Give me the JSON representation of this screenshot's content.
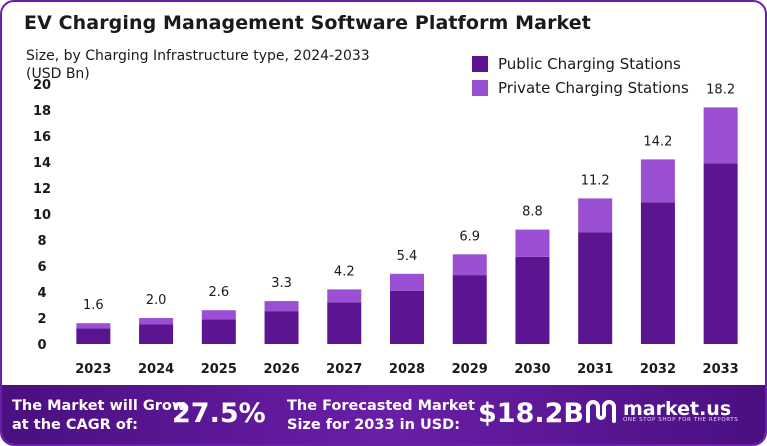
{
  "chart_data": {
    "type": "bar",
    "stacked": true,
    "title": "EV Charging Management Software Platform Market",
    "subtitle": "Size, by Charging Infrastructure type, 2024-2033\n(USD Bn)",
    "categories": [
      "2023",
      "2024",
      "2025",
      "2026",
      "2027",
      "2028",
      "2029",
      "2030",
      "2031",
      "2032",
      "2033"
    ],
    "series": [
      {
        "name": "Public Charging Stations",
        "color": "#5b1590",
        "values": [
          1.2,
          1.5,
          1.9,
          2.5,
          3.2,
          4.1,
          5.3,
          6.7,
          8.6,
          10.9,
          13.9
        ]
      },
      {
        "name": "Private Charging Stations",
        "color": "#9b4fd3",
        "values": [
          0.4,
          0.5,
          0.7,
          0.8,
          1.0,
          1.3,
          1.6,
          2.1,
          2.6,
          3.3,
          4.3
        ]
      }
    ],
    "totals": [
      "1.6",
      "2.0",
      "2.6",
      "3.3",
      "4.2",
      "5.4",
      "6.9",
      "8.8",
      "11.2",
      "14.2",
      "18.2"
    ],
    "ylim": [
      0,
      20
    ],
    "yticks": [
      "0",
      "2",
      "4",
      "6",
      "8",
      "10",
      "12",
      "14",
      "16",
      "18",
      "20"
    ],
    "grid": false,
    "legend_position": "top-right"
  },
  "footer": {
    "cagr_label_1": "The Market will Grow",
    "cagr_label_2": "at the CAGR of:",
    "cagr_value": "27.5%",
    "forecast_label_1": "The Forecasted Market",
    "forecast_label_2": "Size for 2033 in USD:",
    "forecast_value": "$18.2B",
    "brand_name": "market.us",
    "brand_tagline": "ONE STOP SHOP FOR THE REPORTS"
  }
}
